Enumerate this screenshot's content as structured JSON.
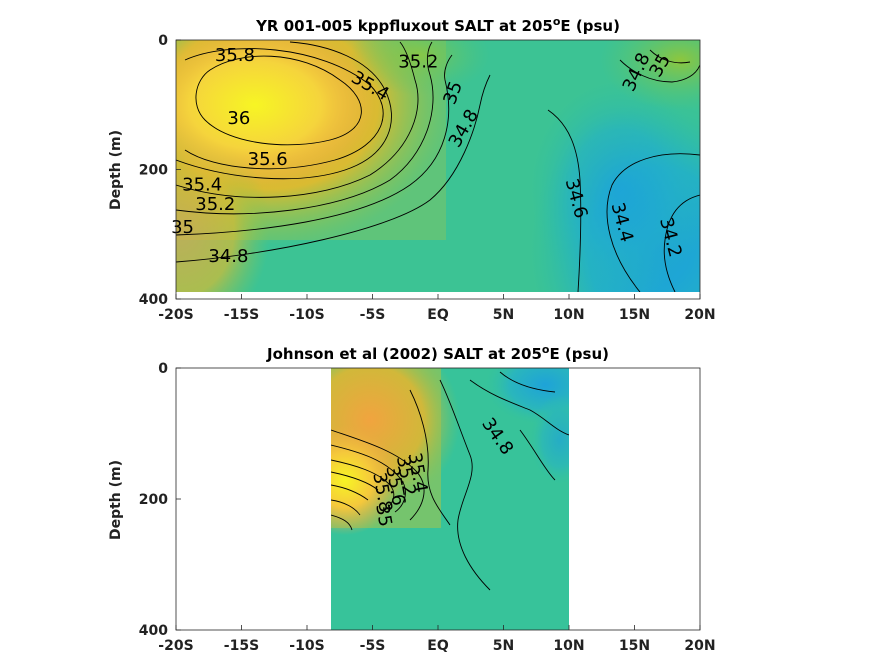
{
  "chart_data": [
    {
      "type": "heatmap",
      "title": "YR 001-005 kppfluxout SALT at 205",
      "title_sup": "o",
      "title_suffix": "E (psu)",
      "xlabel": "",
      "ylabel": "Depth (m)",
      "xlim": [
        -20,
        20
      ],
      "ylim": [
        400,
        0
      ],
      "data_x_range": [
        -20,
        20
      ],
      "data_y_range": [
        0,
        385
      ],
      "x_ticks": [
        -20,
        -15,
        -10,
        -5,
        0,
        5,
        10,
        15,
        20
      ],
      "x_tick_labels": [
        "-20S",
        "-15S",
        "-10S",
        "-5S",
        "EQ",
        "5N",
        "10N",
        "15N",
        "20N"
      ],
      "y_ticks": [
        0,
        200,
        400
      ],
      "y_tick_labels": [
        "0",
        "200",
        "400"
      ],
      "contour_labels": [
        {
          "text": "35.8",
          "x": -15.5,
          "y": 25,
          "angle": 0
        },
        {
          "text": "35.2",
          "x": -1.5,
          "y": 35,
          "angle": 0
        },
        {
          "text": "35.4",
          "x": -5.2,
          "y": 72,
          "angle": 30
        },
        {
          "text": "35",
          "x": 1.2,
          "y": 82,
          "angle": -70
        },
        {
          "text": "36",
          "x": -15.2,
          "y": 122,
          "angle": 0
        },
        {
          "text": "34.8",
          "x": 2.0,
          "y": 137,
          "angle": -60
        },
        {
          "text": "35.6",
          "x": -13.0,
          "y": 185,
          "angle": 0
        },
        {
          "text": "35.4",
          "x": -18.0,
          "y": 225,
          "angle": 0
        },
        {
          "text": "35.2",
          "x": -17.0,
          "y": 255,
          "angle": 0
        },
        {
          "text": "35",
          "x": -19.5,
          "y": 290,
          "angle": 0
        },
        {
          "text": "34.8",
          "x": -16.0,
          "y": 335,
          "angle": 0
        },
        {
          "text": "34.6",
          "x": 10.5,
          "y": 245,
          "angle": 75
        },
        {
          "text": "34.4",
          "x": 14.0,
          "y": 282,
          "angle": 75
        },
        {
          "text": "34.2",
          "x": 17.7,
          "y": 305,
          "angle": 75
        },
        {
          "text": "34.8",
          "x": 15.2,
          "y": 50,
          "angle": -65
        },
        {
          "text": "35",
          "x": 17.0,
          "y": 40,
          "angle": -60
        }
      ]
    },
    {
      "type": "heatmap",
      "title": "Johnson et al (2002) SALT at 205",
      "title_sup": "o",
      "title_suffix": "E (psu)",
      "xlabel": "",
      "ylabel": "Depth (m)",
      "xlim": [
        -20,
        20
      ],
      "ylim": [
        400,
        0
      ],
      "data_x_range": [
        -8,
        10
      ],
      "data_y_range": [
        0,
        400
      ],
      "x_ticks": [
        -20,
        -15,
        -10,
        -5,
        0,
        5,
        10,
        15,
        20
      ],
      "x_tick_labels": [
        "-20S",
        "-15S",
        "-10S",
        "-5S",
        "EQ",
        "5N",
        "10N",
        "15N",
        "20N"
      ],
      "y_ticks": [
        0,
        200,
        400
      ],
      "y_tick_labels": [
        "0",
        "200",
        "400"
      ],
      "contour_labels": [
        {
          "text": "34.8",
          "x": 4.5,
          "y": 105,
          "angle": 55
        },
        {
          "text": "35.2",
          "x": -2.5,
          "y": 165,
          "angle": 80
        },
        {
          "text": "35.4",
          "x": -1.6,
          "y": 160,
          "angle": 80
        },
        {
          "text": "35.6",
          "x": -3.3,
          "y": 180,
          "angle": 80
        },
        {
          "text": "35.8",
          "x": -4.3,
          "y": 190,
          "angle": 80
        },
        {
          "text": "35",
          "x": -4.2,
          "y": 225,
          "angle": 80
        }
      ]
    }
  ]
}
